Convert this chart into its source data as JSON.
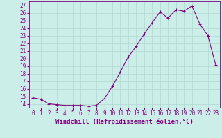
{
  "x": [
    0,
    1,
    2,
    3,
    4,
    5,
    6,
    7,
    8,
    9,
    10,
    11,
    12,
    13,
    14,
    15,
    16,
    17,
    18,
    19,
    20,
    21,
    22,
    23
  ],
  "y": [
    14.8,
    14.6,
    14.0,
    13.9,
    13.8,
    13.8,
    13.8,
    13.7,
    13.8,
    14.7,
    16.3,
    18.2,
    20.2,
    21.6,
    23.2,
    24.7,
    26.1,
    25.3,
    26.4,
    26.2,
    26.9,
    24.5,
    23.0,
    19.1
  ],
  "xlabel": "Windchill (Refroidissement éolien,°C)",
  "ylim": [
    13.5,
    27.5
  ],
  "xlim": [
    -0.5,
    23.5
  ],
  "yticks": [
    14,
    15,
    16,
    17,
    18,
    19,
    20,
    21,
    22,
    23,
    24,
    25,
    26,
    27
  ],
  "xticks": [
    0,
    1,
    2,
    3,
    4,
    5,
    6,
    7,
    8,
    9,
    10,
    11,
    12,
    13,
    14,
    15,
    16,
    17,
    18,
    19,
    20,
    21,
    22,
    23
  ],
  "line_color": "#800080",
  "marker": "+",
  "bg_color": "#cceee8",
  "grid_color": "#b0d8d0",
  "tick_label_size": 5.5,
  "xlabel_size": 6.5
}
